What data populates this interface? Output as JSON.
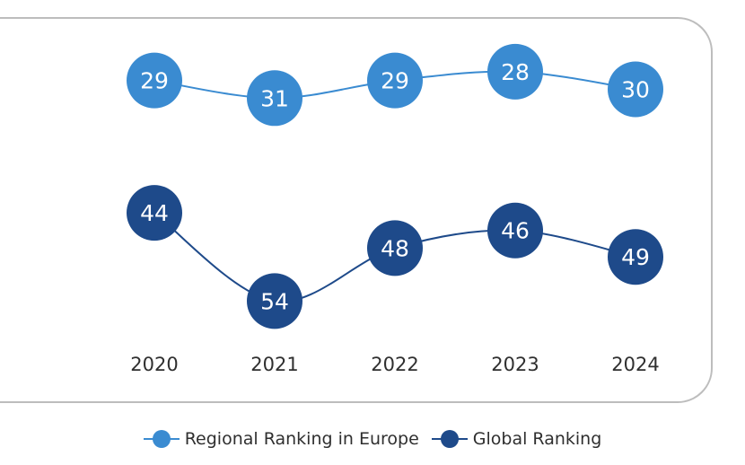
{
  "chart_data": {
    "type": "line",
    "title": "",
    "xlabel": "",
    "ylabel": "",
    "categories": [
      "2020",
      "2021",
      "2022",
      "2023",
      "2024"
    ],
    "series": [
      {
        "name": "Regional Ranking in Europe",
        "values": [
          29,
          31,
          29,
          28,
          30
        ],
        "color": "#3a8bd1"
      },
      {
        "name": "Global Ranking",
        "values": [
          44,
          54,
          48,
          46,
          49
        ],
        "color": "#1e4a8a"
      }
    ],
    "y_axis_inverted": true,
    "ylim": [
      27,
      56
    ],
    "grid": false,
    "legend_position": "bottom-center"
  },
  "colors": {
    "frame": "#bdbdbd",
    "text": "#2f2f2f",
    "marker_text": "#ffffff"
  }
}
